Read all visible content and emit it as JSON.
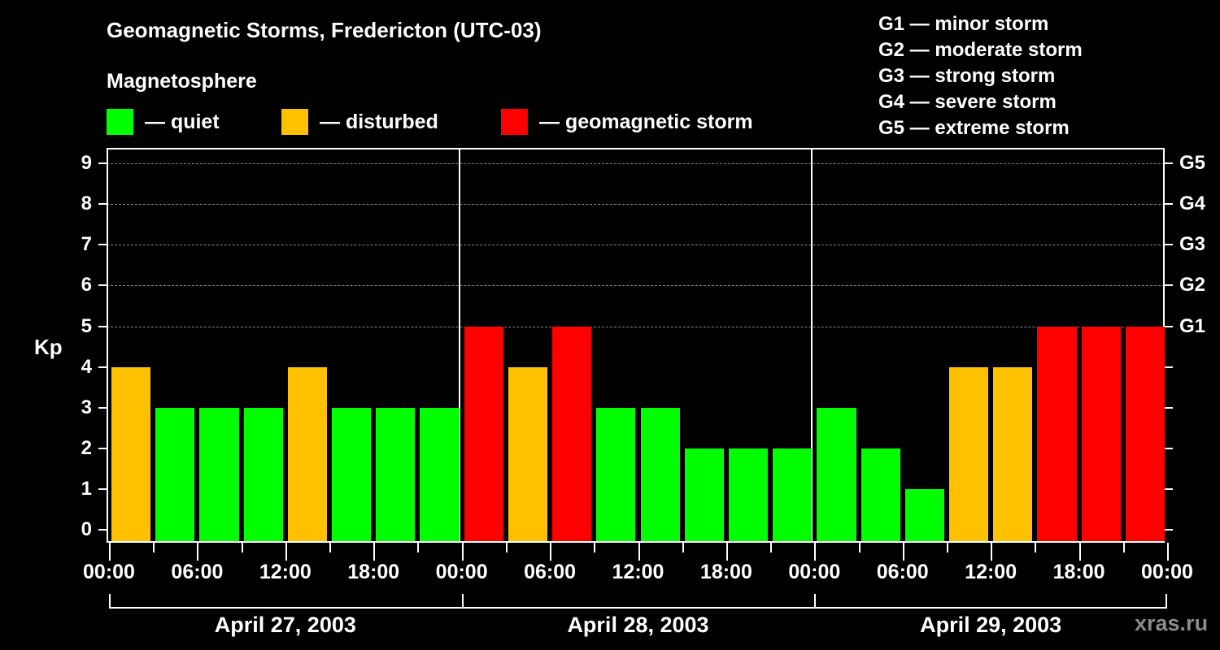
{
  "title": "Geomagnetic Storms, Fredericton (UTC-03)",
  "subtitle": "Magnetosphere",
  "legend": [
    {
      "label": "— quiet",
      "color": "#00ff00"
    },
    {
      "label": "— disturbed",
      "color": "#ffc000"
    },
    {
      "label": "— geomagnetic storm",
      "color": "#ff0000"
    }
  ],
  "g_scale_legend": [
    "G1 — minor storm",
    "G2 — moderate storm",
    "G3 — strong storm",
    "G4 — severe storm",
    "G5 — extreme storm"
  ],
  "y_axis_label": "Kp",
  "watermark": "xras.ru",
  "colors": {
    "quiet": "#00ff00",
    "disturbed": "#ffc000",
    "storm": "#ff0000",
    "background": "#000000",
    "grid": "#888888"
  },
  "chart_data": {
    "type": "bar",
    "title": "Geomagnetic Storms, Fredericton (UTC-03)",
    "xlabel": "",
    "ylabel": "Kp",
    "ylim": [
      0,
      9
    ],
    "y_ticks": [
      0,
      1,
      2,
      3,
      4,
      5,
      6,
      7,
      8,
      9
    ],
    "right_axis_ticks": [
      {
        "kp": 5,
        "label": "G1"
      },
      {
        "kp": 6,
        "label": "G2"
      },
      {
        "kp": 7,
        "label": "G3"
      },
      {
        "kp": 8,
        "label": "G4"
      },
      {
        "kp": 9,
        "label": "G5"
      }
    ],
    "grid": "dashed horizontal at Kp 5-9",
    "x_tick_labels": [
      "00:00",
      "06:00",
      "12:00",
      "18:00",
      "00:00",
      "06:00",
      "12:00",
      "18:00",
      "00:00",
      "06:00",
      "12:00",
      "18:00",
      "00:00"
    ],
    "days": [
      "April 27, 2003",
      "April 28, 2003",
      "April 29, 2003"
    ],
    "interval_hours": 3,
    "series": [
      {
        "name": "April 27, 2003",
        "values": [
          4,
          3,
          3,
          3,
          4,
          3,
          3,
          3
        ],
        "levels": [
          "disturbed",
          "quiet",
          "quiet",
          "quiet",
          "disturbed",
          "quiet",
          "quiet",
          "quiet"
        ]
      },
      {
        "name": "April 28, 2003",
        "values": [
          5,
          4,
          5,
          3,
          3,
          2,
          2,
          2
        ],
        "levels": [
          "storm",
          "disturbed",
          "storm",
          "quiet",
          "quiet",
          "quiet",
          "quiet",
          "quiet"
        ]
      },
      {
        "name": "April 29, 2003",
        "values": [
          3,
          2,
          1,
          4,
          4,
          5,
          5,
          5
        ],
        "levels": [
          "quiet",
          "quiet",
          "quiet",
          "disturbed",
          "disturbed",
          "storm",
          "storm",
          "storm"
        ]
      }
    ]
  }
}
